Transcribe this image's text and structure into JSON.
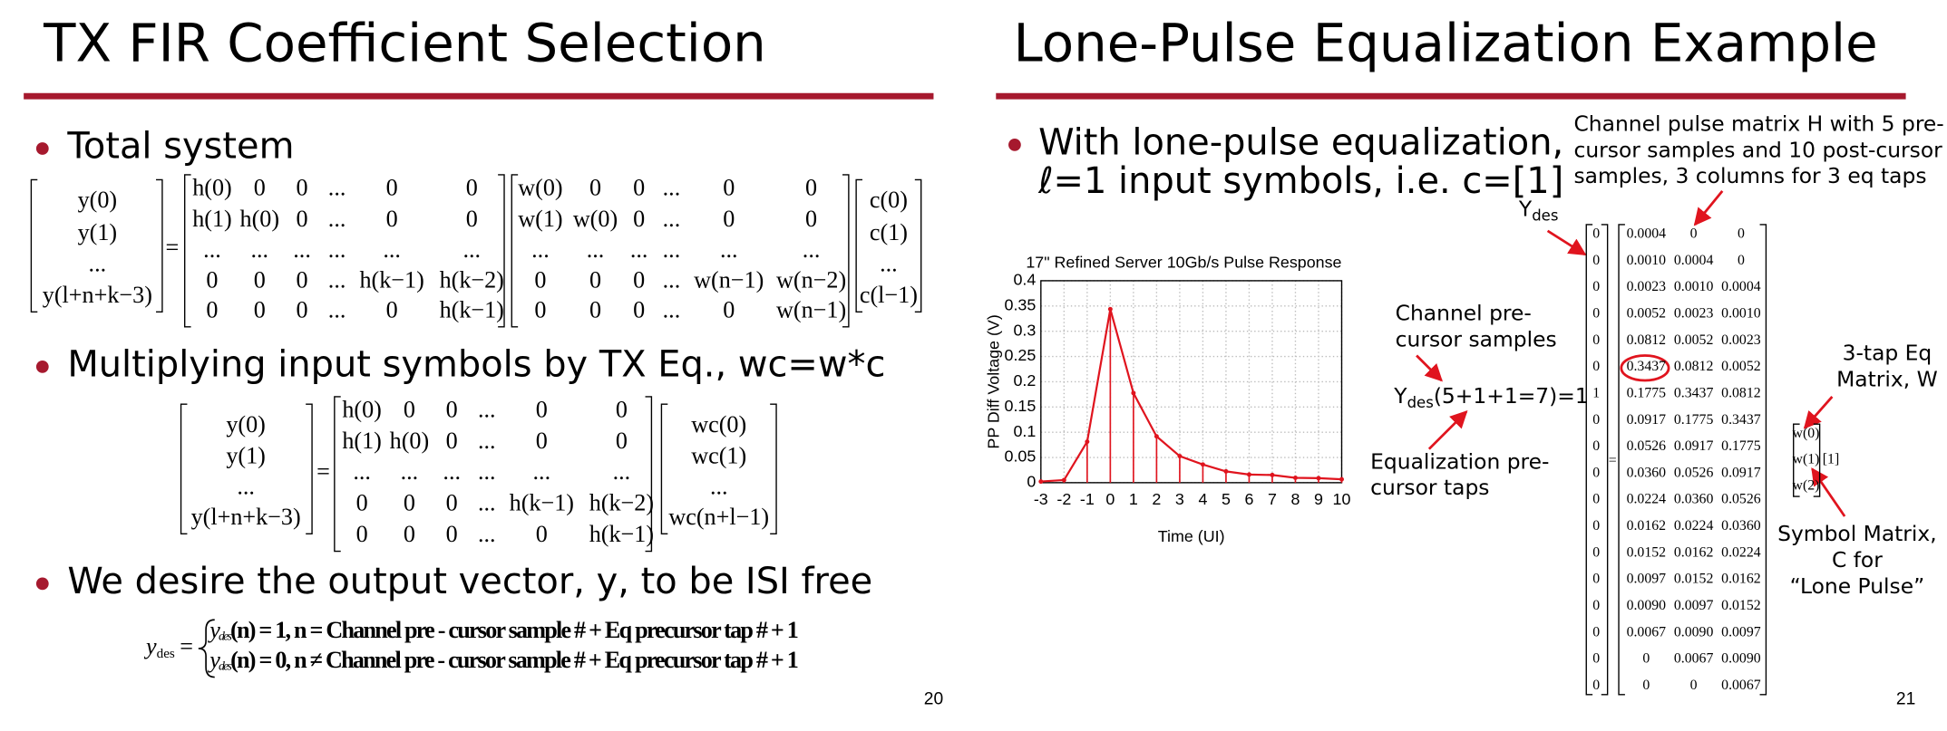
{
  "slides": [
    {
      "title": "TX FIR Coefficient Selection",
      "bullets": [
        "Total system",
        "Multiplying input symbols by TX Eq., wc=w*c",
        "We desire the output vector, y, to be ISI free"
      ],
      "equation1": {
        "y": [
          "y(0)",
          "y(1)",
          "...",
          "y(l+n+k−3)"
        ],
        "H": [
          [
            "h(0)",
            "0",
            "0",
            "...",
            "0",
            "0"
          ],
          [
            "h(1)",
            "h(0)",
            "0",
            "...",
            "0",
            "0"
          ],
          [
            "...",
            "...",
            "...",
            "...",
            "...",
            "..."
          ],
          [
            "0",
            "0",
            "0",
            "...",
            "h(k−1)",
            "h(k−2)"
          ],
          [
            "0",
            "0",
            "0",
            "...",
            "0",
            "h(k−1)"
          ]
        ],
        "W": [
          [
            "w(0)",
            "0",
            "0",
            "...",
            "0",
            "0"
          ],
          [
            "w(1)",
            "w(0)",
            "0",
            "...",
            "0",
            "0"
          ],
          [
            "...",
            "...",
            "...",
            "...",
            "...",
            "..."
          ],
          [
            "0",
            "0",
            "0",
            "...",
            "w(n−1)",
            "w(n−2)"
          ],
          [
            "0",
            "0",
            "0",
            "...",
            "0",
            "w(n−1)"
          ]
        ],
        "c": [
          "c(0)",
          "c(1)",
          "...",
          "c(l−1)"
        ]
      },
      "equation2": {
        "y": [
          "y(0)",
          "y(1)",
          "...",
          "y(l+n+k−3)"
        ],
        "H": [
          [
            "h(0)",
            "0",
            "0",
            "...",
            "0",
            "0"
          ],
          [
            "h(1)",
            "h(0)",
            "0",
            "...",
            "0",
            "0"
          ],
          [
            "...",
            "...",
            "...",
            "...",
            "...",
            "..."
          ],
          [
            "0",
            "0",
            "0",
            "...",
            "h(k−1)",
            "h(k−2)"
          ],
          [
            "0",
            "0",
            "0",
            "...",
            "0",
            "h(k−1)"
          ]
        ],
        "wc": [
          "wc(0)",
          "wc(1)",
          "...",
          "wc(n+l−1)"
        ]
      },
      "equation3": {
        "base": "y",
        "sub": "des",
        "equals": "=",
        "cases": [
          {
            "base": "y",
            "sub": "des",
            "text": "(n) = 1, n = Channel pre - cursor sample # + Eq precursor tap # + 1"
          },
          {
            "base": "y",
            "sub": "des",
            "text": "(n) = 0, n ≠ Channel pre - cursor sample # + Eq precursor tap # + 1"
          }
        ]
      },
      "page_number": "20"
    },
    {
      "title": "Lone-Pulse Equalization Example",
      "bullet": [
        "With lone-pulse equalization,",
        "ℓ=1 input symbols, i.e. c=[1]"
      ],
      "chart": {
        "type": "line",
        "title": "17\" Refined Server 10Gb/s Pulse Response",
        "x": [
          -3,
          -2,
          -1,
          0,
          1,
          2,
          3,
          4,
          5,
          6,
          7,
          8,
          9,
          10
        ],
        "series": [
          {
            "color": "#e0141e",
            "values": [
              0.0023,
              0.0052,
              0.0812,
              0.3437,
              0.1775,
              0.0917,
              0.0526,
              0.036,
              0.0224,
              0.0162,
              0.0152,
              0.0097,
              0.009,
              0.0067
            ]
          }
        ],
        "xlim": [
          -3,
          10
        ],
        "ylim": [
          0,
          0.4
        ],
        "xticks": [
          -3,
          -2,
          -1,
          0,
          1,
          2,
          3,
          4,
          5,
          6,
          7,
          8,
          9,
          10
        ],
        "yticks": [
          0,
          0.05,
          0.1,
          0.15,
          0.2,
          0.25,
          0.3,
          0.35,
          0.4
        ],
        "xlabel": "Time (UI)",
        "ylabel": "PP Diff Voltage (V)",
        "grid": true
      },
      "annotations": {
        "h_matrix": [
          "Channel pulse matrix H with 5 pre-",
          "cursor samples and 10 post-cursor",
          "samples, 3 columns for 3 eq taps"
        ],
        "ydes_label": {
          "base": "Y",
          "sub": "des"
        },
        "precursor_samples": [
          "Channel pre-",
          "cursor samples"
        ],
        "ydes_eq": {
          "base": "Y",
          "sub": "des",
          "text": "(5+1+1=7)=1"
        },
        "eq_taps": [
          "Equalization pre-",
          "cursor taps"
        ],
        "w_label": [
          "3-tap Eq",
          "Matrix, W"
        ],
        "c_label": [
          "Symbol Matrix,",
          "C for",
          "“Lone Pulse”"
        ]
      },
      "matrix": {
        "y": [
          "0",
          "0",
          "0",
          "0",
          "0",
          "0",
          "1",
          "0",
          "0",
          "0",
          "0",
          "0",
          "0",
          "0",
          "0",
          "0",
          "0",
          "0"
        ],
        "equals": "=",
        "H": [
          [
            "0.0004",
            "0",
            "0"
          ],
          [
            "0.0010",
            "0.0004",
            "0"
          ],
          [
            "0.0023",
            "0.0010",
            "0.0004"
          ],
          [
            "0.0052",
            "0.0023",
            "0.0010"
          ],
          [
            "0.0812",
            "0.0052",
            "0.0023"
          ],
          [
            "0.3437",
            "0.0812",
            "0.0052"
          ],
          [
            "0.1775",
            "0.3437",
            "0.0812"
          ],
          [
            "0.0917",
            "0.1775",
            "0.3437"
          ],
          [
            "0.0526",
            "0.0917",
            "0.1775"
          ],
          [
            "0.0360",
            "0.0526",
            "0.0917"
          ],
          [
            "0.0224",
            "0.0360",
            "0.0526"
          ],
          [
            "0.0162",
            "0.0224",
            "0.0360"
          ],
          [
            "0.0152",
            "0.0162",
            "0.0224"
          ],
          [
            "0.0097",
            "0.0152",
            "0.0162"
          ],
          [
            "0.0090",
            "0.0097",
            "0.0152"
          ],
          [
            "0.0067",
            "0.0090",
            "0.0097"
          ],
          [
            "0",
            "0.0067",
            "0.0090"
          ],
          [
            "0",
            "0",
            "0.0067"
          ]
        ],
        "W": [
          "w(0)",
          "w(1)",
          "w(2)"
        ],
        "C": "[1]"
      },
      "page_number": "21"
    }
  ]
}
